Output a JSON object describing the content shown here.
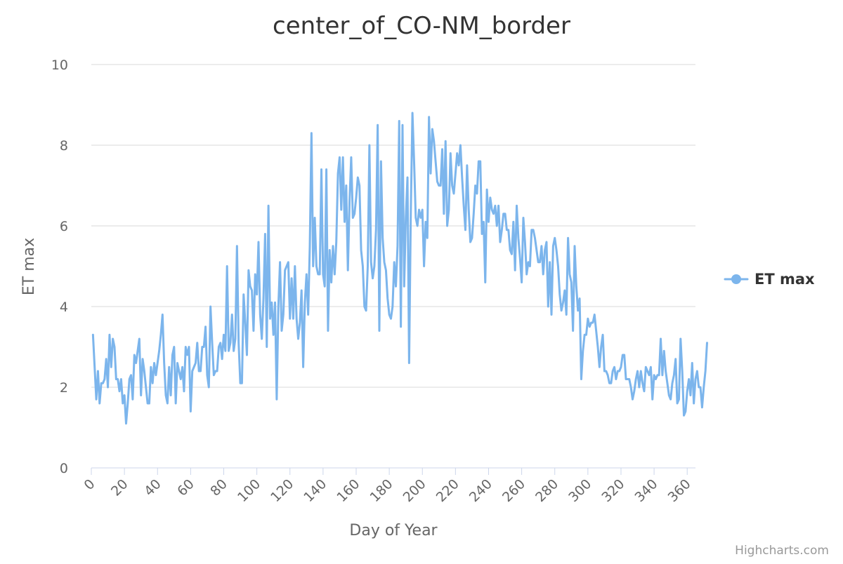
{
  "chart_data": {
    "type": "line",
    "title": "center_of_CO-NM_border",
    "xlabel": "Day of Year",
    "ylabel": "ET max",
    "xlim": [
      0,
      365
    ],
    "ylim": [
      0,
      10
    ],
    "x_ticks": [
      0,
      20,
      40,
      60,
      80,
      100,
      120,
      140,
      160,
      180,
      200,
      220,
      240,
      260,
      280,
      300,
      320,
      340,
      360
    ],
    "y_ticks": [
      0,
      2,
      4,
      6,
      8,
      10
    ],
    "grid": "horizontal",
    "legend_position": "right",
    "series": [
      {
        "name": "ET max",
        "color": "#7cb5ec",
        "x_start": 1,
        "x_step": 1,
        "values": [
          3.3,
          2.5,
          1.7,
          2.4,
          1.6,
          2.1,
          2.1,
          2.2,
          2.7,
          2.0,
          3.3,
          2.5,
          3.2,
          3.0,
          2.2,
          2.2,
          1.9,
          2.2,
          1.6,
          1.8,
          1.1,
          1.6,
          2.2,
          2.3,
          1.7,
          2.8,
          2.6,
          2.9,
          3.2,
          1.8,
          2.7,
          2.4,
          2.0,
          1.6,
          1.6,
          2.5,
          2.1,
          2.6,
          2.3,
          2.6,
          2.9,
          3.3,
          3.8,
          2.6,
          1.8,
          1.6,
          2.5,
          1.8,
          2.8,
          3.0,
          1.6,
          2.6,
          2.4,
          2.2,
          2.5,
          1.9,
          3.0,
          2.8,
          3.0,
          1.4,
          2.4,
          2.5,
          2.6,
          3.1,
          2.4,
          2.4,
          3.0,
          3.0,
          3.5,
          2.3,
          2.0,
          4.0,
          3.1,
          2.3,
          2.4,
          2.4,
          3.0,
          3.1,
          2.7,
          3.3,
          2.9,
          5.0,
          2.9,
          3.1,
          3.8,
          2.9,
          3.2,
          5.5,
          3.1,
          2.1,
          2.1,
          4.3,
          3.6,
          2.8,
          4.9,
          4.5,
          4.4,
          3.4,
          4.8,
          4.3,
          5.6,
          3.8,
          3.2,
          4.2,
          5.8,
          3.0,
          6.5,
          3.7,
          4.1,
          3.3,
          4.1,
          1.7,
          4.0,
          5.1,
          3.4,
          3.8,
          4.9,
          5.0,
          5.1,
          3.7,
          4.7,
          3.7,
          5.0,
          3.7,
          3.2,
          3.6,
          4.4,
          2.5,
          4.1,
          4.8,
          3.8,
          5.5,
          8.3,
          5.0,
          6.2,
          5.0,
          4.8,
          4.8,
          7.4,
          4.8,
          4.5,
          7.4,
          3.4,
          5.4,
          4.6,
          5.5,
          4.8,
          5.6,
          7.3,
          7.7,
          6.4,
          7.7,
          6.1,
          7.0,
          4.9,
          6.6,
          7.7,
          6.2,
          6.3,
          6.7,
          7.2,
          7.0,
          5.4,
          5.0,
          4.0,
          3.9,
          5.0,
          8.0,
          5.1,
          4.7,
          5.0,
          5.9,
          8.5,
          3.4,
          7.6,
          5.7,
          5.1,
          4.9,
          4.2,
          3.8,
          3.7,
          4.0,
          5.1,
          4.5,
          5.5,
          8.6,
          3.5,
          8.5,
          4.5,
          6.2,
          7.2,
          2.6,
          6.3,
          8.8,
          7.6,
          6.2,
          6.0,
          6.4,
          6.2,
          6.4,
          5.0,
          6.1,
          5.7,
          8.7,
          7.3,
          8.4,
          8.1,
          7.6,
          7.1,
          7.0,
          7.0,
          7.9,
          6.3,
          8.1,
          6.0,
          6.4,
          7.8,
          7.0,
          6.8,
          7.3,
          7.8,
          7.5,
          8.0,
          7.2,
          6.5,
          5.9,
          7.5,
          6.4,
          5.6,
          5.7,
          6.3,
          7.0,
          6.8,
          7.6,
          7.6,
          5.8,
          6.1,
          4.6,
          6.9,
          6.1,
          6.7,
          6.4,
          6.3,
          6.5,
          6.0,
          6.5,
          5.6,
          5.9,
          6.3,
          6.3,
          5.9,
          5.9,
          5.4,
          5.3,
          6.1,
          4.9,
          6.5,
          5.7,
          5.2,
          4.6,
          6.2,
          5.6,
          4.8,
          5.1,
          5.0,
          5.9,
          5.9,
          5.7,
          5.4,
          5.1,
          5.1,
          5.5,
          4.8,
          5.4,
          5.6,
          4.0,
          5.1,
          3.8,
          5.5,
          5.7,
          5.4,
          5.0,
          4.3,
          3.9,
          4.1,
          4.4,
          3.8,
          5.7,
          4.8,
          4.6,
          3.4,
          5.5,
          4.5,
          3.9,
          4.2,
          2.2,
          2.9,
          3.3,
          3.3,
          3.7,
          3.5,
          3.6,
          3.6,
          3.8,
          3.4,
          3.0,
          2.5,
          3.0,
          3.3,
          2.4,
          2.4,
          2.3,
          2.1,
          2.1,
          2.4,
          2.5,
          2.2,
          2.4,
          2.4,
          2.5,
          2.8,
          2.8,
          2.2,
          2.2,
          2.2,
          2.0,
          1.7,
          1.9,
          2.2,
          2.4,
          2.0,
          2.4,
          2.1,
          1.9,
          2.5,
          2.4,
          2.3,
          2.5,
          1.7,
          2.3,
          2.2,
          2.3,
          2.3,
          3.2,
          2.3,
          2.9,
          2.4,
          2.1,
          1.8,
          1.7,
          2.1,
          2.3,
          2.7,
          1.6,
          1.7,
          3.2,
          2.4,
          1.3,
          1.4,
          1.9,
          2.2,
          1.8,
          2.6,
          1.6,
          2.2,
          2.4,
          2.0,
          2.0,
          1.5,
          2.0,
          2.4,
          3.1
        ]
      }
    ]
  },
  "credits": "Highcharts.com"
}
